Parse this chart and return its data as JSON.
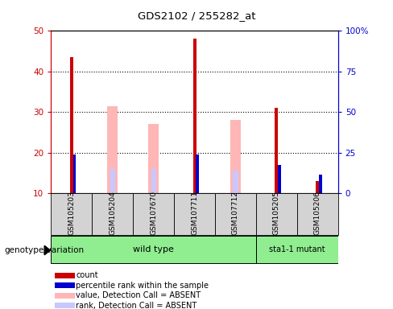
{
  "title": "GDS2102 / 255282_at",
  "samples": [
    "GSM105203",
    "GSM105204",
    "GSM107670",
    "GSM107711",
    "GSM107712",
    "GSM105205",
    "GSM105206"
  ],
  "groups": [
    "wild type",
    "wild type",
    "wild type",
    "wild type",
    "wild type",
    "sta1-1 mutant",
    "sta1-1 mutant"
  ],
  "red_values": [
    43.5,
    0,
    0,
    48,
    0,
    31,
    13
  ],
  "pink_values": [
    0,
    31.5,
    27,
    0,
    28,
    0,
    0
  ],
  "blue_values": [
    19.5,
    0,
    0,
    19.5,
    0,
    17,
    14.5
  ],
  "lavender_values": [
    0,
    16,
    16,
    0,
    15.5,
    0,
    0
  ],
  "ylim_left": [
    10,
    50
  ],
  "ylim_right": [
    0,
    100
  ],
  "yticks_left": [
    10,
    20,
    30,
    40,
    50
  ],
  "yticks_right": [
    0,
    25,
    50,
    75,
    100
  ],
  "yticklabels_right": [
    "0",
    "25",
    "50",
    "75",
    "100%"
  ],
  "left_axis_color": "#cc0000",
  "right_axis_color": "#0000cc",
  "pink_bar_width": 0.25,
  "lav_bar_width": 0.12,
  "red_bar_width": 0.08,
  "blue_bar_width": 0.07,
  "plot_bg": "#ffffff",
  "sample_bg": "#d3d3d3",
  "wt_color": "#90ee90",
  "mut_color": "#90ee90",
  "legend_items": [
    {
      "label": "count",
      "color": "#cc0000"
    },
    {
      "label": "percentile rank within the sample",
      "color": "#0000cc"
    },
    {
      "label": "value, Detection Call = ABSENT",
      "color": "#ffb6b6"
    },
    {
      "label": "rank, Detection Call = ABSENT",
      "color": "#c8c8ff"
    }
  ]
}
